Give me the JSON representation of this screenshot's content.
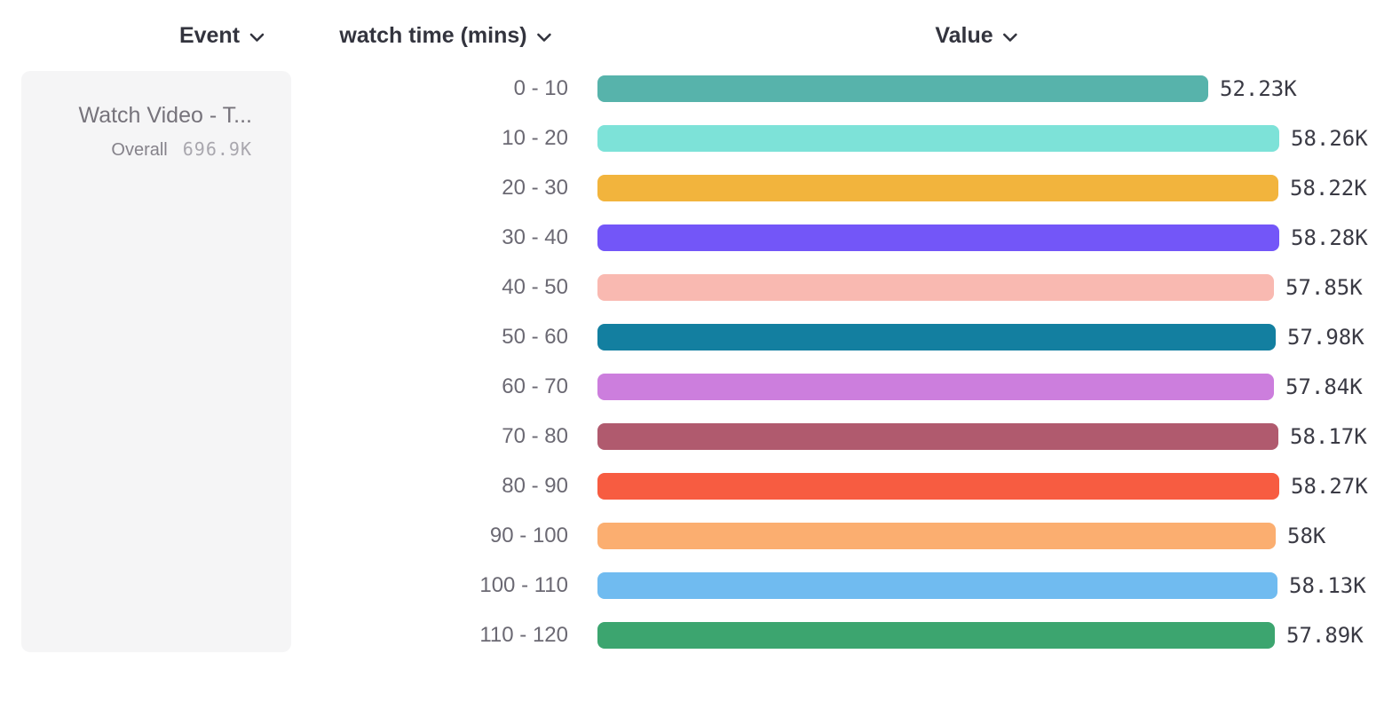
{
  "header": {
    "columns": [
      {
        "label": "Event"
      },
      {
        "label": "watch time (mins)"
      },
      {
        "label": "Value"
      }
    ]
  },
  "event_card": {
    "title": "Watch Video - T...",
    "overall_label": "Overall",
    "overall_value": "696.9K"
  },
  "chart_data": {
    "type": "bar",
    "orientation": "horizontal",
    "title": "",
    "xlabel": "Value",
    "ylabel": "watch time (mins)",
    "categories": [
      "0 - 10",
      "10 - 20",
      "20 - 30",
      "30 - 40",
      "40 - 50",
      "50 - 60",
      "60 - 70",
      "70 - 80",
      "80 - 90",
      "90 - 100",
      "100 - 110",
      "110 - 120"
    ],
    "values_thousands": [
      52.23,
      58.26,
      58.22,
      58.28,
      57.85,
      57.98,
      57.84,
      58.17,
      58.27,
      58.0,
      58.13,
      57.89
    ],
    "value_labels": [
      "52.23K",
      "58.26K",
      "58.22K",
      "58.28K",
      "57.85K",
      "57.98K",
      "57.84K",
      "58.17K",
      "58.27K",
      "58K",
      "58.13K",
      "57.89K"
    ],
    "bar_colors": [
      "#57b3ab",
      "#7de2d8",
      "#f2b43d",
      "#7356f8",
      "#f9b9b1",
      "#137fa0",
      "#cc7edd",
      "#b05a6e",
      "#f75c41",
      "#fbae70",
      "#70bbf0",
      "#3ca56f"
    ],
    "xlim_thousands": [
      0,
      58.28
    ],
    "grid": false,
    "legend_position": "none",
    "colors": {
      "header_text": "#33343e",
      "category_label": "#6b6973",
      "value_label": "#3a3a44",
      "card_background": "#f5f5f6"
    }
  }
}
